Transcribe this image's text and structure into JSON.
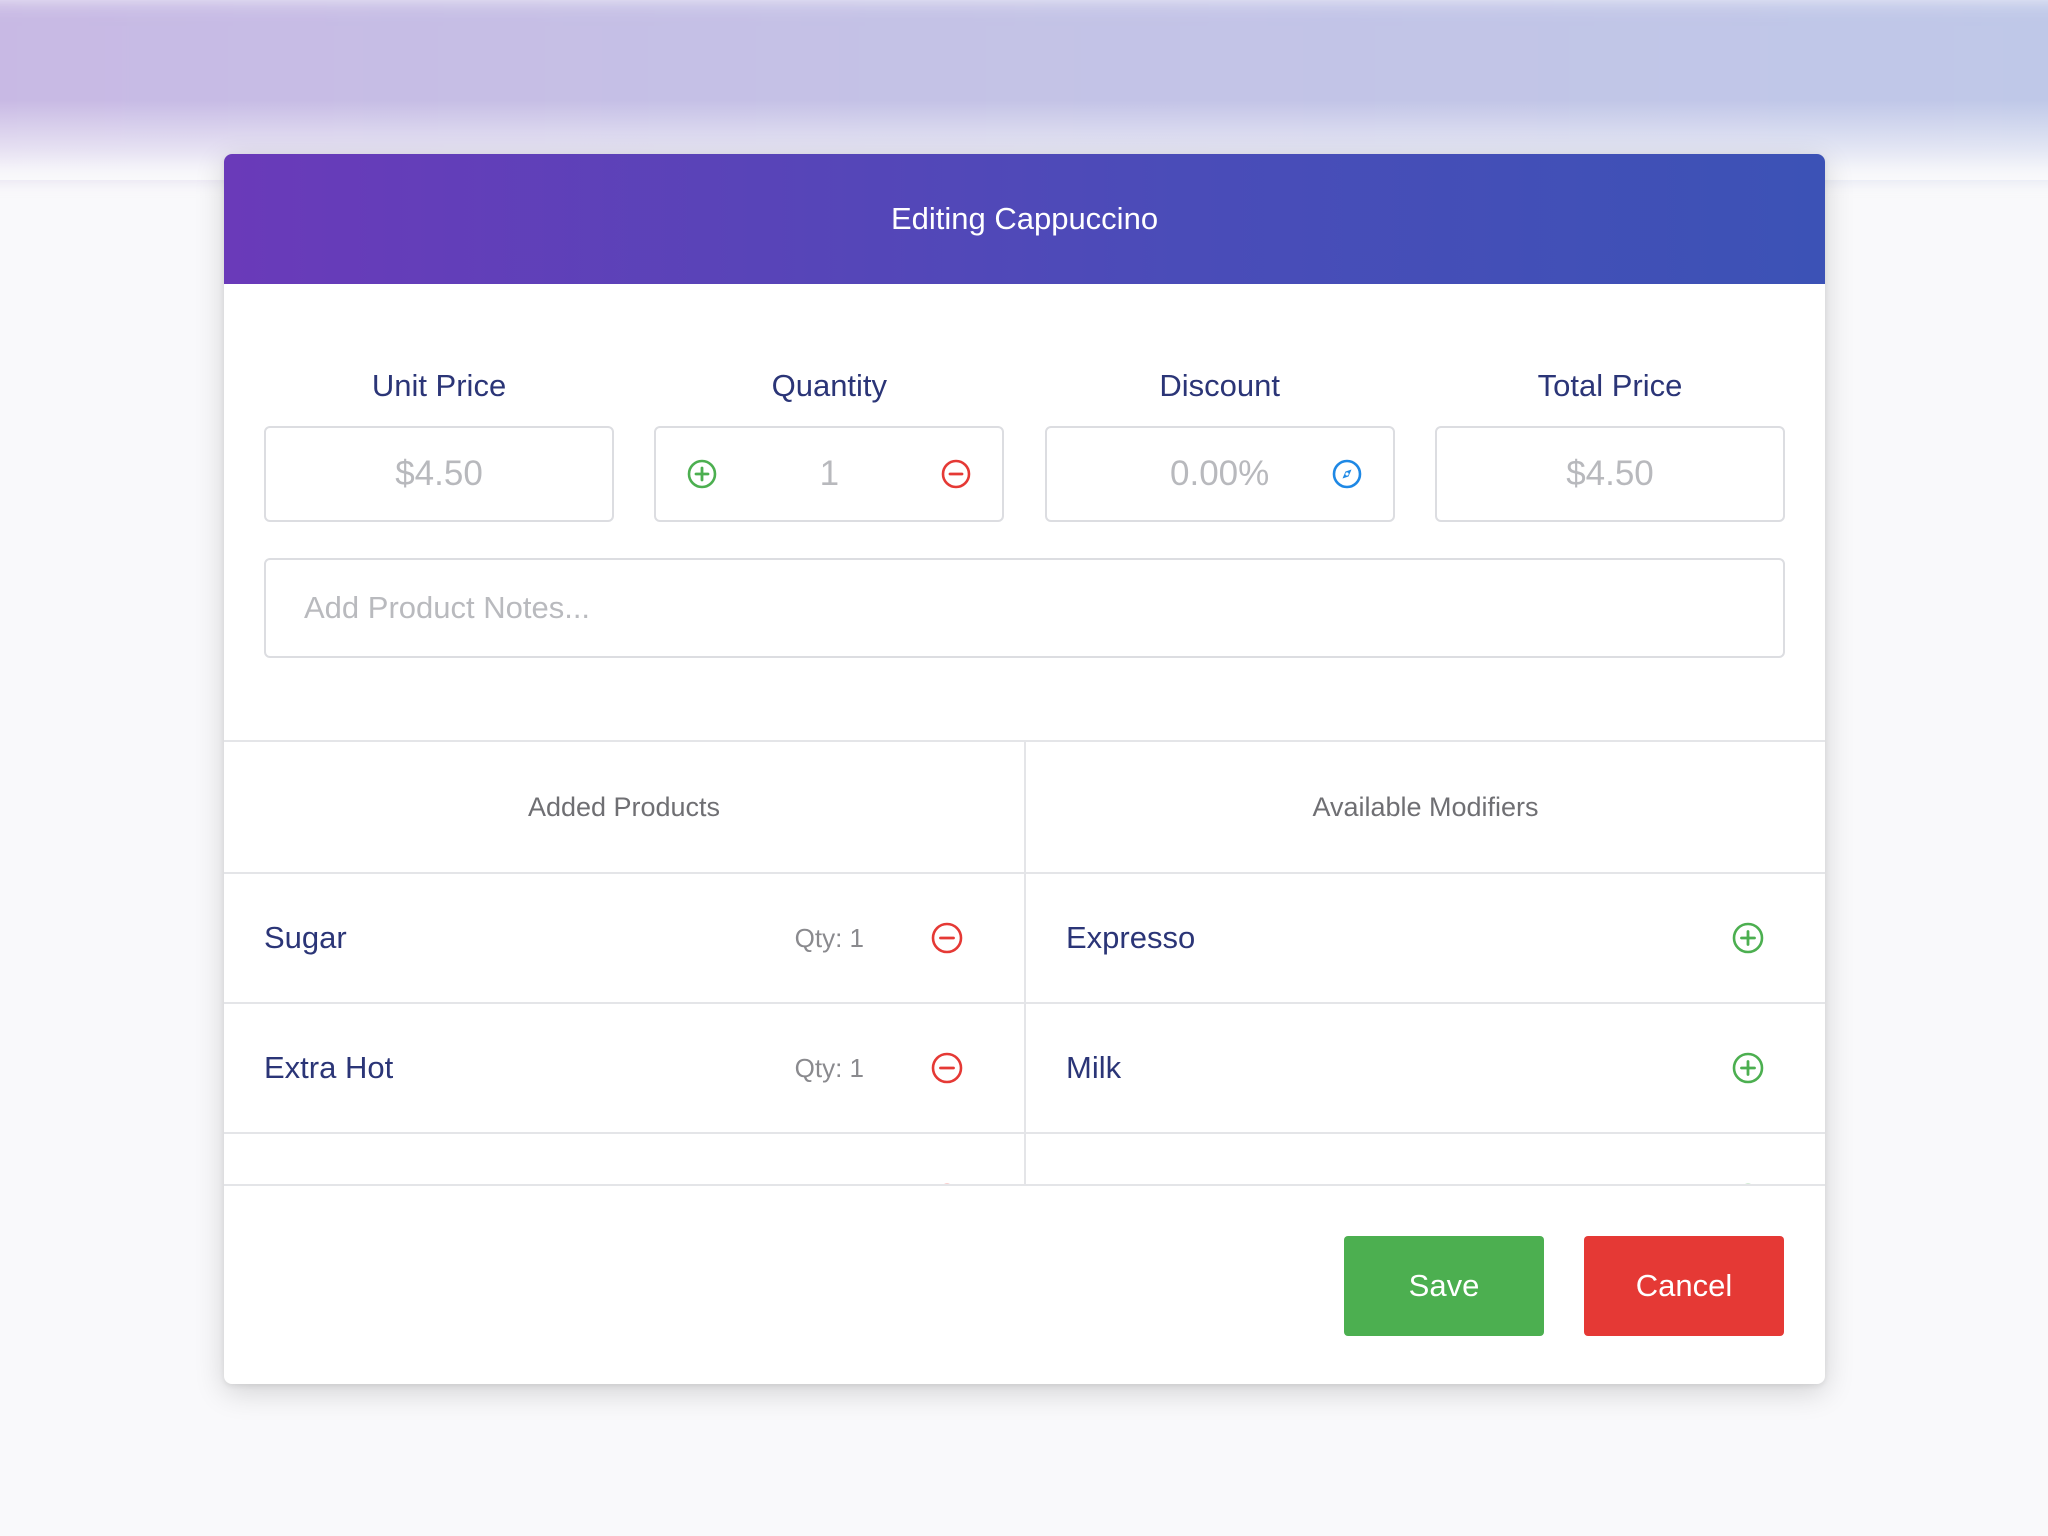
{
  "modal": {
    "title": "Editing Cappuccino"
  },
  "fields": {
    "unit_price": {
      "label": "Unit Price",
      "value": "$4.50"
    },
    "quantity": {
      "label": "Quantity",
      "value": "1",
      "increment_icon": "plus-circle-icon",
      "decrement_icon": "minus-circle-icon"
    },
    "discount": {
      "label": "Discount",
      "value": "0.00%",
      "icon": "compass-icon"
    },
    "total_price": {
      "label": "Total Price",
      "value": "$4.50"
    }
  },
  "notes": {
    "placeholder": "Add Product Notes..."
  },
  "added_products": {
    "header": "Added Products",
    "items": [
      {
        "name": "Sugar",
        "qty": "Qty: 1"
      },
      {
        "name": "Extra Hot",
        "qty": "Qty: 1"
      }
    ]
  },
  "available_modifiers": {
    "header": "Available Modifiers",
    "items": [
      {
        "name": "Expresso"
      },
      {
        "name": "Milk"
      }
    ]
  },
  "buttons": {
    "save": "Save",
    "cancel": "Cancel"
  },
  "colors": {
    "header_gradient_start": "#6a3ab9",
    "header_gradient_end": "#3c52b6",
    "text_primary": "#2b3577",
    "add": "#4caf50",
    "remove": "#e53935",
    "info": "#1e88e5"
  }
}
